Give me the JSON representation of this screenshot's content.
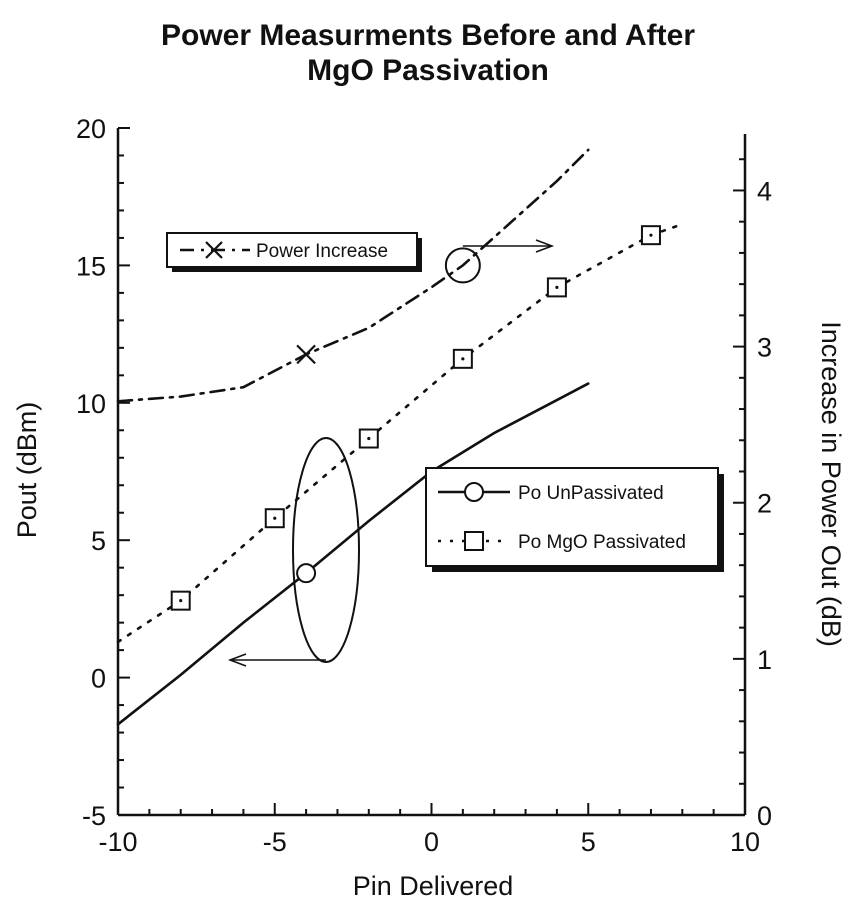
{
  "chart_data": {
    "type": "line",
    "title": "Power Measurments Before and After MgO Passivation",
    "title_lines": [
      "Power Measurments Before and After",
      "MgO Passivation"
    ],
    "xlabel": "Pin Delivered",
    "ylabel": "Pout (dBm)",
    "y2label": "Increase in Power Out (dB)",
    "xlim": [
      -10,
      10
    ],
    "ylim": [
      -5,
      20
    ],
    "y2lim": [
      0,
      4.4
    ],
    "x_ticks": [
      -10,
      -5,
      0,
      5,
      10
    ],
    "y_ticks": [
      -5,
      0,
      5,
      10,
      15,
      20
    ],
    "y2_ticks": [
      0,
      1,
      2,
      3,
      4
    ],
    "grid": false,
    "series": [
      {
        "name": "Po UnPassivated",
        "axis": "left",
        "line": "solid",
        "marker": "circle",
        "x": [
          -10,
          -8,
          -6,
          -4,
          -2,
          0,
          2,
          4,
          5
        ],
        "y": [
          -1.7,
          0.1,
          2.0,
          3.8,
          5.7,
          7.5,
          8.9,
          10.1,
          10.7
        ],
        "marker_points": [
          {
            "x": -4,
            "y": 3.8
          }
        ]
      },
      {
        "name": "Po MgO Passivated",
        "axis": "left",
        "line": "dotted",
        "marker": "square",
        "x": [
          -10,
          -8,
          -5,
          -2,
          1,
          4,
          7,
          8
        ],
        "y": [
          1.3,
          2.8,
          5.8,
          8.7,
          11.6,
          14.2,
          16.1,
          16.5
        ],
        "marker_points": [
          {
            "x": -8,
            "y": 2.8
          },
          {
            "x": -5,
            "y": 5.8
          },
          {
            "x": -2,
            "y": 8.7
          },
          {
            "x": 1,
            "y": 11.6
          },
          {
            "x": 4,
            "y": 14.2
          },
          {
            "x": 7,
            "y": 16.1
          }
        ]
      },
      {
        "name": "Power Increase",
        "axis": "right",
        "line": "dash-dot",
        "marker": "x",
        "x": [
          -10,
          -8,
          -6,
          -4,
          -2,
          0,
          1,
          2,
          3,
          4,
          5
        ],
        "y": [
          2.65,
          2.68,
          2.74,
          2.95,
          3.12,
          3.38,
          3.52,
          3.7,
          3.88,
          4.06,
          4.26
        ],
        "marker_points": [
          {
            "x": -4,
            "y": 2.95
          }
        ]
      }
    ],
    "legends": [
      {
        "placement": "upper-left",
        "entries": [
          "Power Increase"
        ]
      },
      {
        "placement": "center-right",
        "entries": [
          "Po UnPassivated",
          "Po MgO Passivated"
        ]
      }
    ],
    "annotations": [
      {
        "type": "ellipse-arrow",
        "target_axis": "right",
        "note": "circle around Power Increase curve with arrow pointing to right axis"
      },
      {
        "type": "ellipse-arrow",
        "target_axis": "left",
        "note": "ellipse around Pout curves with arrow pointing to left axis"
      }
    ],
    "colors": {
      "line": "#111111",
      "background": "#ffffff"
    }
  }
}
